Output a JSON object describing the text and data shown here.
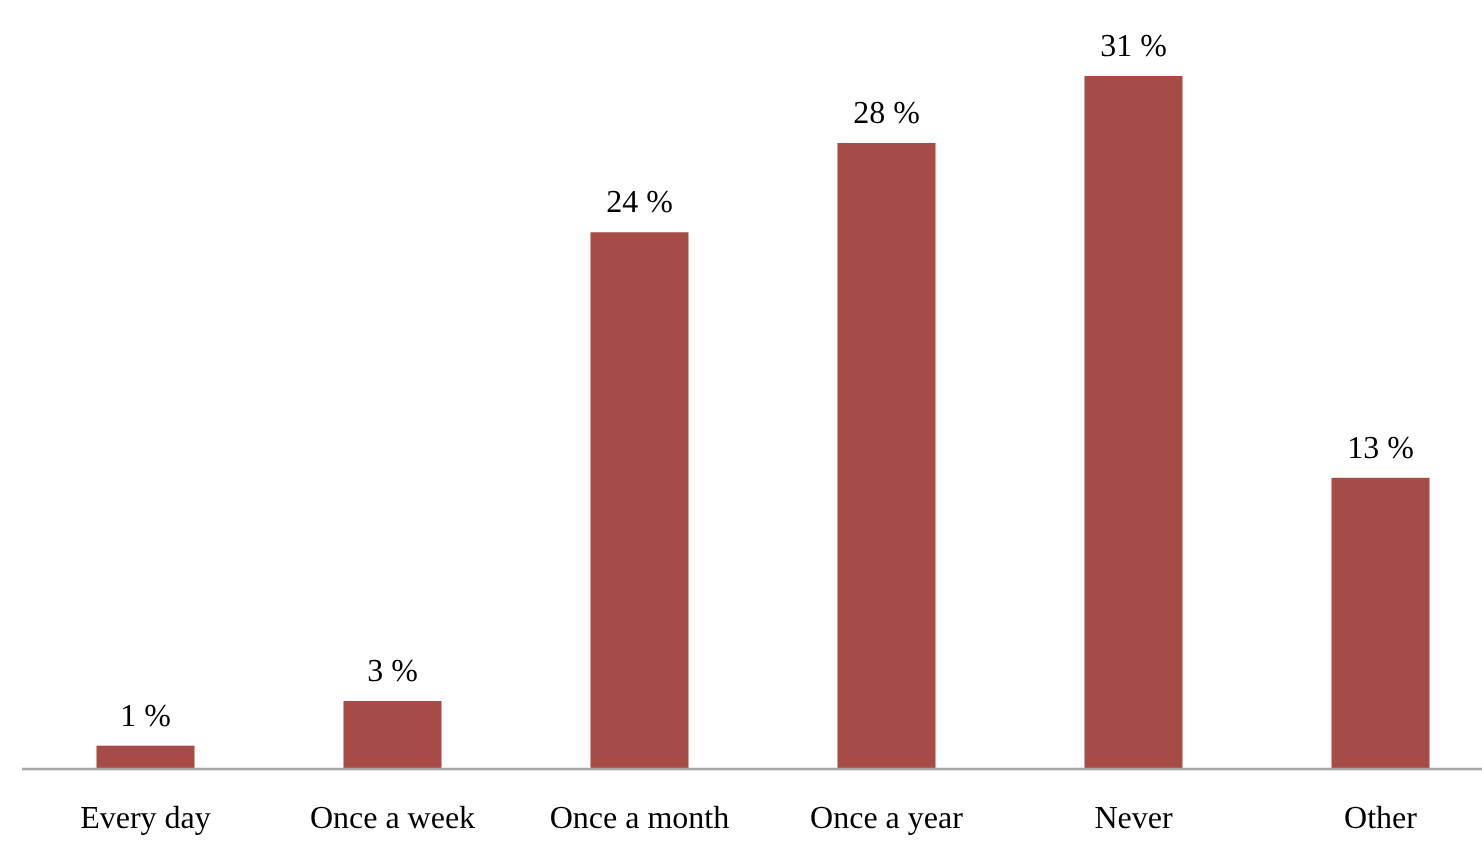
{
  "chart_data": {
    "type": "bar",
    "categories": [
      "Every day",
      "Once a week",
      "Once a month",
      "Once a year",
      "Never",
      "Other"
    ],
    "values": [
      1,
      3,
      24,
      28,
      31,
      13
    ],
    "color": "#a64b45",
    "value_labels": [
      "1 %",
      "3 %",
      "24 %",
      "28 %",
      "31 %",
      "13 %"
    ]
  }
}
